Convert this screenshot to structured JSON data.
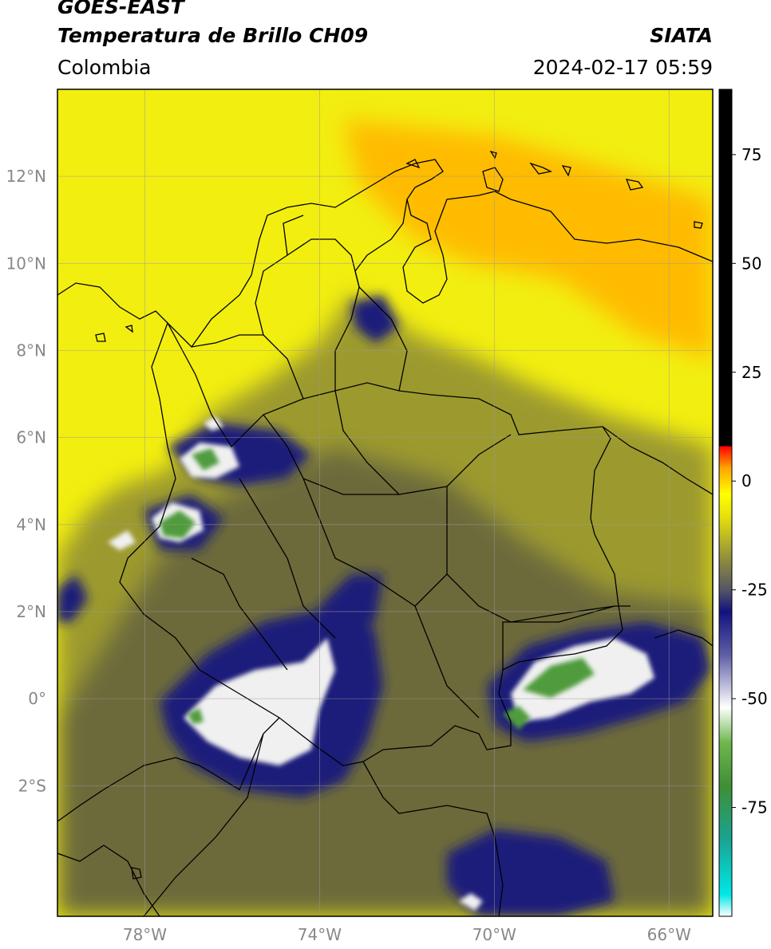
{
  "header": {
    "satellite": "GOES-EAST",
    "product": "Temperatura de Brillo CH09",
    "organization": "SIATA",
    "region": "Colombia",
    "timestamp": "2024-02-17 05:59"
  },
  "map": {
    "lon_range": [
      -80,
      -65
    ],
    "lat_range": [
      -5,
      14
    ],
    "lat_ticks": [
      {
        "value": 12,
        "label": "12°N"
      },
      {
        "value": 10,
        "label": "10°N"
      },
      {
        "value": 8,
        "label": "8°N"
      },
      {
        "value": 6,
        "label": "6°N"
      },
      {
        "value": 4,
        "label": "4°N"
      },
      {
        "value": 2,
        "label": "2°N"
      },
      {
        "value": 0,
        "label": "0°"
      },
      {
        "value": -2,
        "label": "2°S"
      }
    ],
    "lon_ticks": [
      {
        "value": -78,
        "label": "78°W"
      },
      {
        "value": -74,
        "label": "74°W"
      },
      {
        "value": -70,
        "label": "70°W"
      },
      {
        "value": -66,
        "label": "66°W"
      }
    ],
    "grid": true,
    "colors": {
      "warm_background": "#f2ee10",
      "dry_orange": "#ffbb00",
      "olive": "#9c9a2e",
      "dark_olive": "#6c6a3a",
      "navy": "#1c1c7a",
      "cold_white": "#f0f0f0",
      "cold_green": "#4f9b3c"
    }
  },
  "colorbar": {
    "range": [
      -100,
      90
    ],
    "ticks": [
      {
        "value": 75,
        "label": "75"
      },
      {
        "value": 50,
        "label": "50"
      },
      {
        "value": 25,
        "label": "25"
      },
      {
        "value": 0,
        "label": "0"
      },
      {
        "value": -25,
        "label": "-25"
      },
      {
        "value": -50,
        "label": "-50"
      },
      {
        "value": -75,
        "label": "-75"
      }
    ],
    "stops": [
      {
        "value": -100,
        "color": "#ffffff"
      },
      {
        "value": -95,
        "color": "#00e8e8"
      },
      {
        "value": -82,
        "color": "#19a38f"
      },
      {
        "value": -70,
        "color": "#3f8f35"
      },
      {
        "value": -60,
        "color": "#6fb84e"
      },
      {
        "value": -52,
        "color": "#ffffff"
      },
      {
        "value": -40,
        "color": "#5f5fa6"
      },
      {
        "value": -30,
        "color": "#121280"
      },
      {
        "value": -25,
        "color": "#555566"
      },
      {
        "value": -18,
        "color": "#8f8d3c"
      },
      {
        "value": -8,
        "color": "#e6e20c"
      },
      {
        "value": -3,
        "color": "#ffff00"
      },
      {
        "value": 3,
        "color": "#ffa500"
      },
      {
        "value": 8,
        "color": "#ff0000"
      },
      {
        "value": 8.01,
        "color": "#000000"
      },
      {
        "value": 90,
        "color": "#000000"
      }
    ]
  }
}
